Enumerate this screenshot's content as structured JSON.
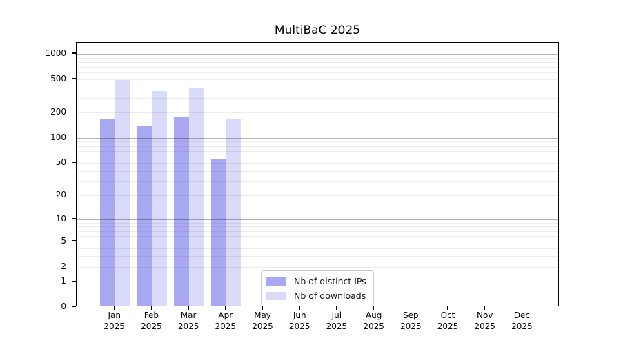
{
  "chart_data": {
    "type": "bar",
    "title": "MultiBaC 2025",
    "categories": [
      "Jan",
      "Feb",
      "Mar",
      "Apr",
      "May",
      "Jun",
      "Jul",
      "Aug",
      "Sep",
      "Oct",
      "Nov",
      "Dec"
    ],
    "category_year": "2025",
    "series": [
      {
        "name": "Nb of distinct IPs",
        "color": "#a9a9f3",
        "values": [
          165,
          133,
          171,
          53,
          0,
          0,
          0,
          0,
          0,
          0,
          0,
          0
        ]
      },
      {
        "name": "Nb of downloads",
        "color": "#dadaf9",
        "values": [
          470,
          348,
          377,
          161,
          0,
          0,
          0,
          0,
          0,
          0,
          0,
          0
        ]
      }
    ],
    "y_axis": {
      "scale": "log10(value+1)",
      "ticks": [
        0,
        1,
        2,
        5,
        10,
        20,
        50,
        100,
        200,
        500,
        1000
      ],
      "major_gridlines": [
        1,
        10,
        100,
        1000
      ],
      "minor_gridline_decades": [
        1,
        10,
        100
      ],
      "ylim": [
        0,
        1380
      ]
    },
    "grid": "on",
    "legend_position": "bottom-center"
  },
  "colors": {
    "axis": "#000000",
    "major_grid": "#b2b2b2",
    "minor_grid": "#eaeaea",
    "legend_border": "#c8c8c8",
    "background": "#ffffff"
  }
}
